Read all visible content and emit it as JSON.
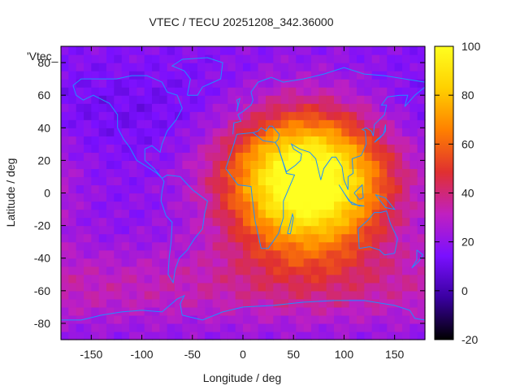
{
  "chart_data": {
    "type": "heatmap",
    "title": "VTEC / TECU 20251208_342.36000",
    "xlabel": "Longitude / deg",
    "ylabel": "Latitude / deg",
    "overlay_key": "'Vtec_",
    "xlim": [
      -180,
      180
    ],
    "ylim": [
      -90,
      90
    ],
    "xticks": [
      -150,
      -100,
      -50,
      0,
      50,
      100,
      150
    ],
    "yticks": [
      -80,
      -60,
      -40,
      -20,
      0,
      20,
      40,
      60,
      80
    ],
    "colorbar": {
      "range": [
        -20,
        100
      ],
      "ticks": [
        -20,
        0,
        20,
        40,
        60,
        80,
        100
      ],
      "palette": [
        "#000000",
        "#3a00a0",
        "#7a10ff",
        "#c020c0",
        "#e03030",
        "#ff8000",
        "#ffd000",
        "#ffff20"
      ]
    },
    "coastline_color": "#1e90ff",
    "vtec_peaks": [
      {
        "lon": 65,
        "lat": -10,
        "value": 95
      },
      {
        "lon": 75,
        "lat": 18,
        "value": 80
      },
      {
        "lon": 50,
        "lat": 18,
        "value": 78
      }
    ],
    "vtec_background": 18
  }
}
